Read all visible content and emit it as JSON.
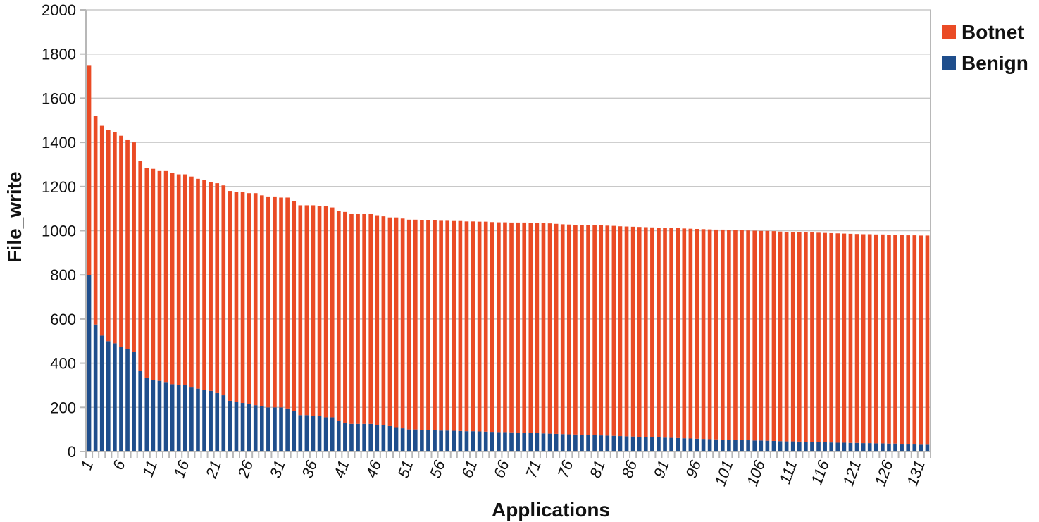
{
  "chart_data": {
    "type": "bar",
    "stacked": true,
    "title": "",
    "xlabel": "Applications",
    "ylabel": "File_write",
    "ylim": [
      0,
      2000
    ],
    "y_ticks": [
      0,
      200,
      400,
      600,
      800,
      1000,
      1200,
      1400,
      1600,
      1800,
      2000
    ],
    "x_tick_labels": [
      "1",
      "6",
      "11",
      "16",
      "21",
      "26",
      "31",
      "36",
      "41",
      "46",
      "51",
      "56",
      "61",
      "66",
      "71",
      "76",
      "81",
      "86",
      "91",
      "96",
      "101",
      "106",
      "111",
      "116",
      "121",
      "126",
      "131"
    ],
    "grid": "horizontal",
    "legend_position": "top-right",
    "categories": [
      "1",
      "2",
      "3",
      "4",
      "5",
      "6",
      "7",
      "8",
      "9",
      "10",
      "11",
      "12",
      "13",
      "14",
      "15",
      "16",
      "17",
      "18",
      "19",
      "20",
      "21",
      "22",
      "23",
      "24",
      "25",
      "26",
      "27",
      "28",
      "29",
      "30",
      "31",
      "32",
      "33",
      "34",
      "35",
      "36",
      "37",
      "38",
      "39",
      "40",
      "41",
      "42",
      "43",
      "44",
      "45",
      "46",
      "47",
      "48",
      "49",
      "50",
      "51",
      "52",
      "53",
      "54",
      "55",
      "56",
      "57",
      "58",
      "59",
      "60",
      "61",
      "62",
      "63",
      "64",
      "65",
      "66",
      "67",
      "68",
      "69",
      "70",
      "71",
      "72",
      "73",
      "74",
      "75",
      "76",
      "77",
      "78",
      "79",
      "80",
      "81",
      "82",
      "83",
      "84",
      "85",
      "86",
      "87",
      "88",
      "89",
      "90",
      "91",
      "92",
      "93",
      "94",
      "95",
      "96",
      "97",
      "98",
      "99",
      "100",
      "101",
      "102",
      "103",
      "104",
      "105",
      "106",
      "107",
      "108",
      "109",
      "110",
      "111",
      "112",
      "113",
      "114",
      "115",
      "116",
      "117",
      "118",
      "119",
      "120",
      "121",
      "122",
      "123",
      "124",
      "125",
      "126",
      "127",
      "128",
      "129",
      "130",
      "131",
      "132"
    ],
    "series": [
      {
        "name": "Benign",
        "color": "#1f4e8c",
        "values": [
          800,
          575,
          525,
          500,
          490,
          475,
          465,
          450,
          365,
          335,
          325,
          320,
          315,
          305,
          300,
          300,
          290,
          285,
          280,
          275,
          265,
          255,
          230,
          225,
          220,
          215,
          210,
          205,
          200,
          200,
          200,
          195,
          185,
          165,
          165,
          160,
          160,
          155,
          155,
          140,
          130,
          125,
          125,
          125,
          125,
          120,
          120,
          115,
          110,
          105,
          100,
          100,
          98,
          97,
          96,
          95,
          95,
          94,
          93,
          92,
          92,
          91,
          90,
          89,
          88,
          88,
          87,
          86,
          85,
          84,
          83,
          82,
          81,
          80,
          79,
          78,
          77,
          76,
          75,
          74,
          73,
          72,
          71,
          70,
          69,
          68,
          67,
          66,
          65,
          64,
          63,
          62,
          61,
          60,
          59,
          58,
          57,
          56,
          55,
          54,
          53,
          53,
          52,
          51,
          50,
          50,
          49,
          48,
          47,
          46,
          46,
          45,
          44,
          43,
          43,
          42,
          41,
          40,
          40,
          39,
          39,
          38,
          38,
          37,
          37,
          36,
          36,
          35,
          35,
          35,
          34,
          34
        ]
      },
      {
        "name": "Botnet",
        "color": "#ea4b25",
        "values": [
          950,
          945,
          950,
          955,
          955,
          955,
          945,
          950,
          950,
          950,
          955,
          950,
          955,
          955,
          955,
          955,
          955,
          950,
          950,
          945,
          950,
          950,
          950,
          950,
          955,
          955,
          960,
          955,
          955,
          955,
          950,
          955,
          950,
          950,
          950,
          955,
          950,
          955,
          950,
          950,
          955,
          950,
          950,
          950,
          950,
          950,
          945,
          945,
          950,
          950,
          950,
          950,
          950,
          950,
          951,
          950,
          950,
          950,
          951,
          950,
          950,
          950,
          951,
          950,
          950,
          950,
          950,
          951,
          952,
          952,
          952,
          952,
          952,
          951,
          950,
          950,
          950,
          950,
          950,
          950,
          951,
          951,
          951,
          950,
          950,
          950,
          950,
          950,
          950,
          950,
          951,
          951,
          951,
          950,
          950,
          950,
          950,
          950,
          950,
          951,
          951,
          950,
          950,
          950,
          950,
          949,
          950,
          950,
          949,
          948,
          948,
          948,
          949,
          949,
          948,
          948,
          948,
          948,
          947,
          947,
          946,
          946,
          946,
          946,
          946,
          946,
          945,
          945,
          944,
          944,
          944,
          944
        ]
      }
    ]
  }
}
